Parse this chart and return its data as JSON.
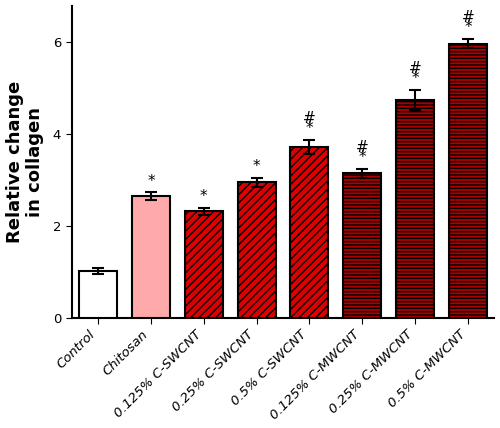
{
  "categories": [
    "Control",
    "Chitosan",
    "0.125% C-SWCNT",
    "0.25% C-SWCNT",
    "0.5% C-SWCNT",
    "0.125% C-MWCNT",
    "0.25% C-MWCNT",
    "0.5% C-MWCNT"
  ],
  "values": [
    1.02,
    2.65,
    2.32,
    2.95,
    3.72,
    3.15,
    4.75,
    5.97
  ],
  "errors": [
    0.06,
    0.08,
    0.08,
    0.1,
    0.15,
    0.1,
    0.22,
    0.1
  ],
  "bar_facecolors": [
    "#ffffff",
    "#ffaaaa",
    "#dd0000",
    "#dd0000",
    "#dd0000",
    "#aa0000",
    "#aa0000",
    "#aa0000"
  ],
  "bar_edgecolors": [
    "#000000",
    "#000000",
    "#000000",
    "#000000",
    "#000000",
    "#000000",
    "#000000",
    "#000000"
  ],
  "hatch_patterns": [
    "",
    "",
    "////",
    "////",
    "////",
    "-----",
    "-----",
    "-----"
  ],
  "ylabel": "Relative change\nin collagen",
  "ylim": [
    0,
    6.8
  ],
  "yticks": [
    0,
    2,
    4,
    6
  ],
  "annotations": [
    {
      "bar_idx": 1,
      "lines": [
        "*"
      ]
    },
    {
      "bar_idx": 2,
      "lines": [
        "*"
      ]
    },
    {
      "bar_idx": 3,
      "lines": [
        "*"
      ]
    },
    {
      "bar_idx": 4,
      "lines": [
        "#",
        "*"
      ]
    },
    {
      "bar_idx": 5,
      "lines": [
        "#",
        "*"
      ]
    },
    {
      "bar_idx": 6,
      "lines": [
        "#",
        "*"
      ]
    },
    {
      "bar_idx": 7,
      "lines": [
        "#",
        "*"
      ]
    }
  ],
  "annotation_fontsize": 11,
  "ylabel_fontsize": 13,
  "tick_label_fontsize": 9.5,
  "figsize": [
    5.0,
    4.28
  ],
  "dpi": 100
}
